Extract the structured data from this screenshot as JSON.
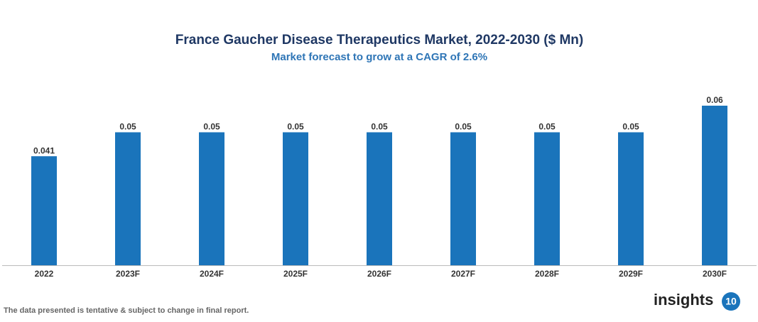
{
  "chart_data": {
    "type": "bar",
    "title": "France Gaucher Disease Therapeutics Market, 2022-2030 ($ Mn)",
    "subtitle": "Market forecast to grow at a CAGR of 2.6%",
    "categories": [
      "2022",
      "2023F",
      "2024F",
      "2025F",
      "2026F",
      "2027F",
      "2028F",
      "2029F",
      "2030F"
    ],
    "values": [
      0.041,
      0.05,
      0.05,
      0.05,
      0.05,
      0.05,
      0.05,
      0.05,
      0.06
    ],
    "color": "#1a74bb"
  },
  "footnote": "The data presented is tentative & subject to change in final report.",
  "logo": {
    "text": "insights",
    "badge": "10"
  }
}
